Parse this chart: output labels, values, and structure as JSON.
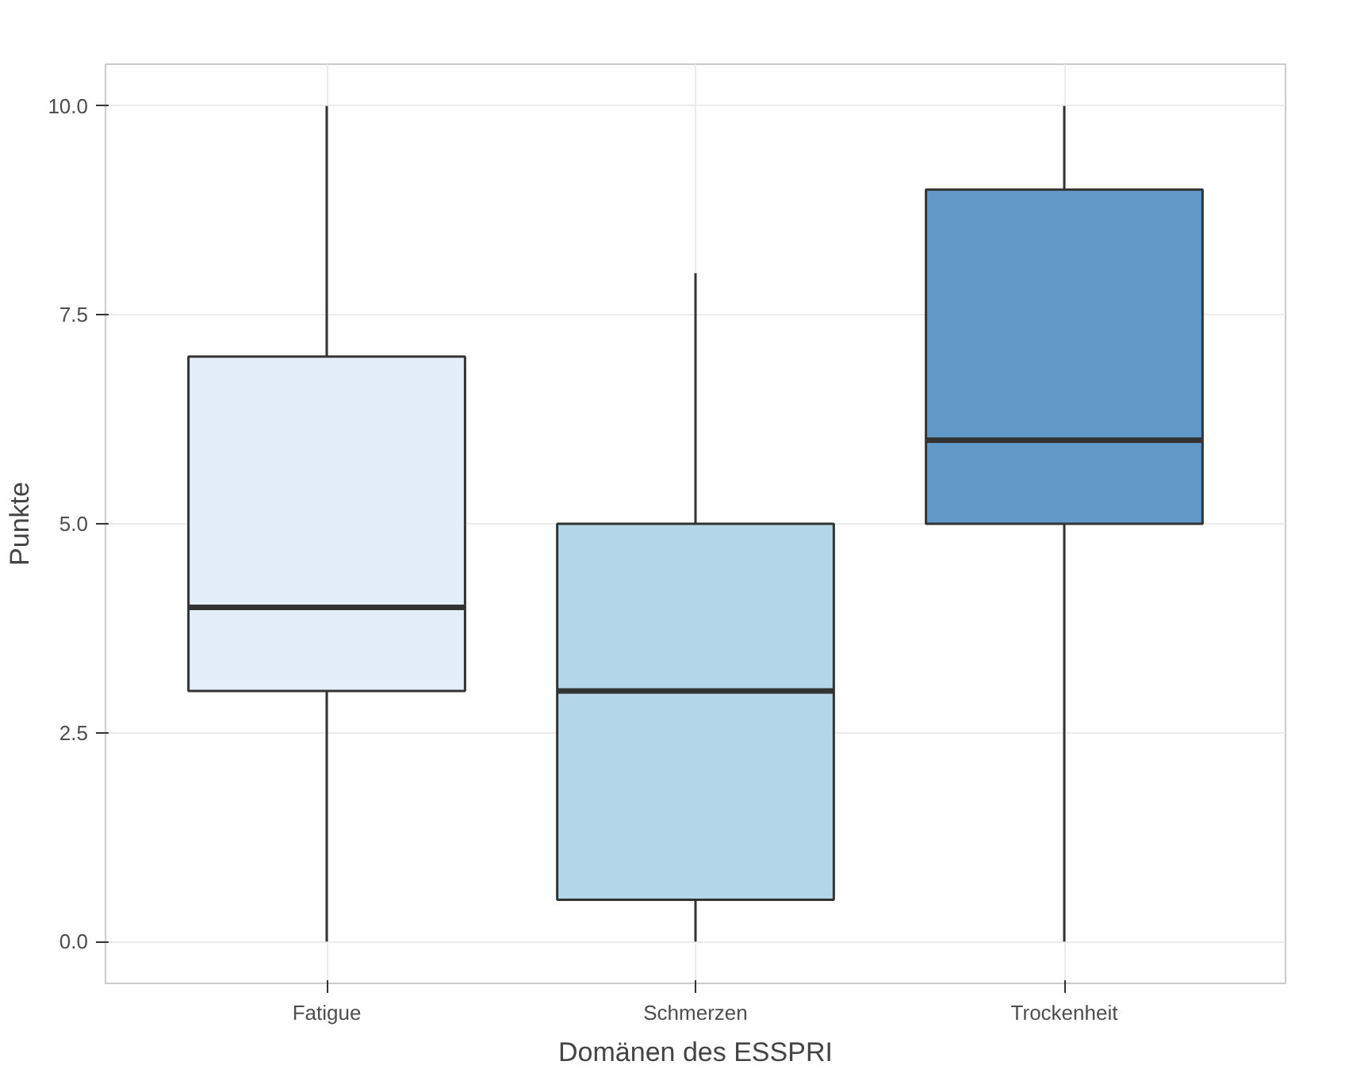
{
  "chart_data": {
    "type": "box",
    "xlabel": "Domänen des ESSPRI",
    "ylabel": "Punkte",
    "categories": [
      "Fatigue",
      "Schmerzen",
      "Trockenheit"
    ],
    "colors": [
      "#e3eef9",
      "#b3d6e8",
      "#6199c8"
    ],
    "boxes": [
      {
        "low": 0,
        "q1": 3,
        "median": 4,
        "q3": 7,
        "high": 10
      },
      {
        "low": 0,
        "q1": 0.5,
        "median": 3,
        "q3": 5,
        "high": 8
      },
      {
        "low": 0,
        "q1": 5,
        "median": 6,
        "q3": 9,
        "high": 10
      }
    ],
    "ylim": [
      -0.5,
      10.5
    ],
    "yticks": [
      {
        "value": 0,
        "label": "0.0"
      },
      {
        "value": 2.5,
        "label": "2.5"
      },
      {
        "value": 5,
        "label": "5.0"
      },
      {
        "value": 7.5,
        "label": "7.5"
      },
      {
        "value": 10,
        "label": "10.0"
      }
    ],
    "grid": true
  }
}
